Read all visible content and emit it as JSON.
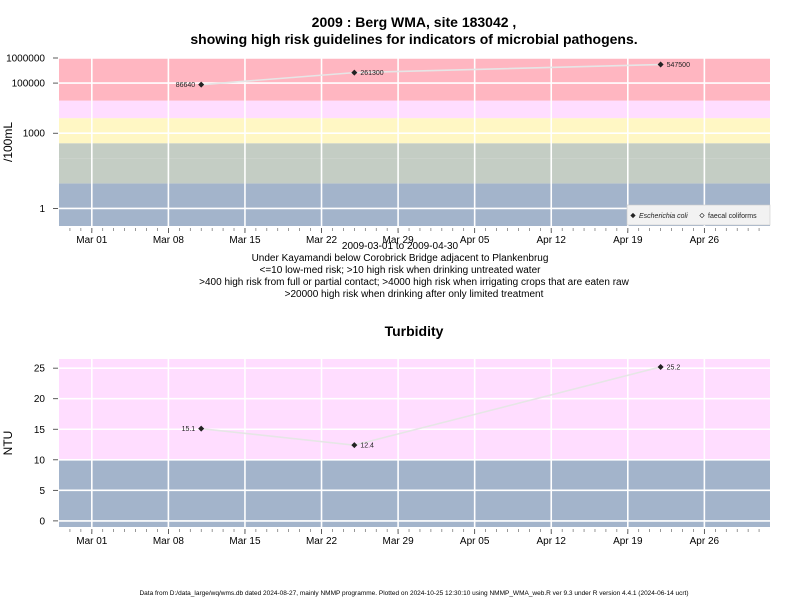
{
  "header": {
    "title_line1": "2009 : Berg WMA, site 183042 ,",
    "title_line2": "showing high risk guidelines for indicators of microbial pathogens."
  },
  "colors": {
    "band_red": "#ffb6c1",
    "band_pink": "#ffddff",
    "band_yellow": "#fff7c4",
    "band_sage": "#c4cdc4",
    "band_blue": "#a3b4cb",
    "grid": "#ffffff",
    "point": "#222222",
    "line": "#e8e8e8"
  },
  "chart_data": [
    {
      "type": "line",
      "title": "",
      "ylabel": "/100mL",
      "xlabel": "",
      "y_scale": "log",
      "ylim": [
        0.2,
        1000000
      ],
      "xlim": [
        "2009-02-26",
        "2009-05-02"
      ],
      "x_ticks": [
        "Mar 01",
        "Mar 08",
        "Mar 15",
        "Mar 22",
        "Mar 29",
        "Apr 05",
        "Apr 12",
        "Apr 19",
        "Apr 26"
      ],
      "y_ticks": [
        "1",
        "1000",
        "100000",
        "1000000"
      ],
      "grid": true,
      "bands": [
        {
          "from": 0.2,
          "to": 10,
          "color": "#a3b4cb"
        },
        {
          "from": 10,
          "to": 100,
          "color": "#c4cdc4"
        },
        {
          "from": 100,
          "to": 400,
          "color": "#c4cdc4"
        },
        {
          "from": 400,
          "to": 4000,
          "color": "#fff7c4"
        },
        {
          "from": 4000,
          "to": 20000,
          "color": "#ffddff"
        },
        {
          "from": 20000,
          "to": 1000000,
          "color": "#ffb6c1"
        }
      ],
      "series": [
        {
          "name": "Escherichia coli",
          "points": [
            {
              "x": "2009-03-11",
              "y": 86640,
              "label": "86640"
            },
            {
              "x": "2009-03-25",
              "y": 261300,
              "label": "261300"
            },
            {
              "x": "2009-04-22",
              "y": 547500,
              "label": "547500"
            }
          ]
        },
        {
          "name": "faecal coliforms",
          "points": []
        }
      ],
      "legend_position": "bottom-right",
      "caption_lines": [
        "2009-03-01 to 2009-04-30",
        "Under Kayamandi below Corobrick Bridge adjacent to Plankenbrug",
        "<=10 low-med risk; >10 high risk when drinking untreated water",
        ">400 high risk from full or partial contact; >4000 high risk when irrigating crops that are eaten raw",
        ">20000 high risk when drinking after only limited treatment"
      ]
    },
    {
      "type": "line",
      "title": "Turbidity",
      "ylabel": "NTU",
      "xlabel": "",
      "ylim": [
        -1,
        26.5
      ],
      "xlim": [
        "2009-02-26",
        "2009-05-02"
      ],
      "x_ticks": [
        "Mar 01",
        "Mar 08",
        "Mar 15",
        "Mar 22",
        "Mar 29",
        "Apr 05",
        "Apr 12",
        "Apr 19",
        "Apr 26"
      ],
      "y_ticks": [
        "0",
        "5",
        "10",
        "15",
        "20",
        "25"
      ],
      "grid": true,
      "bands": [
        {
          "from": -1,
          "to": 10,
          "color": "#a3b4cb"
        },
        {
          "from": 10,
          "to": 26.5,
          "color": "#ffddff"
        }
      ],
      "series": [
        {
          "name": "",
          "points": [
            {
              "x": "2009-03-11",
              "y": 15.1,
              "label": "15.1"
            },
            {
              "x": "2009-03-25",
              "y": 12.4,
              "label": "12.4"
            },
            {
              "x": "2009-04-22",
              "y": 25.2,
              "label": "25.2"
            }
          ]
        }
      ]
    }
  ],
  "footer": "Data from D:/data_large/wq/wms.db dated 2024-08-27, mainly NMMP programme. Plotted on 2024-10-25 12:30:10 using NMMP_WMA_web.R ver 9.3 under R version 4.4.1 (2024-06-14 ucrt)"
}
